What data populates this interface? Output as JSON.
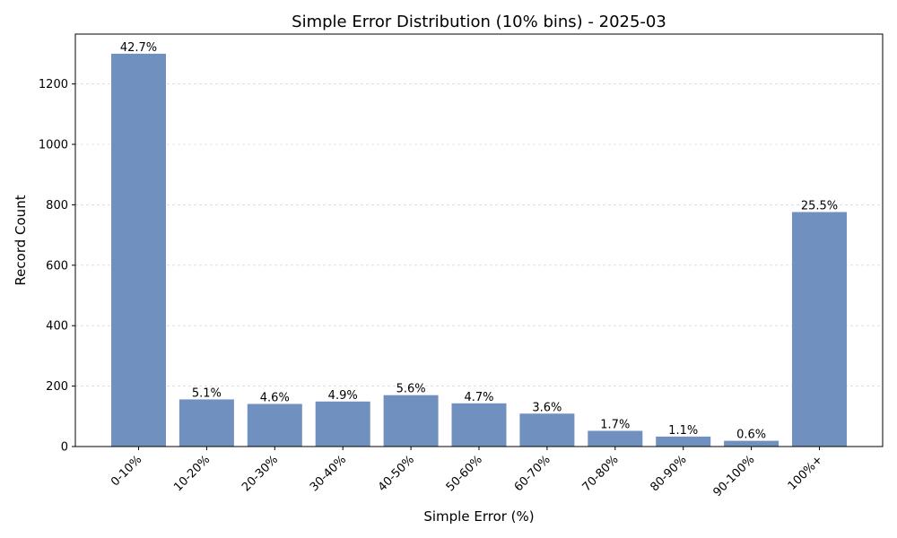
{
  "chart_data": {
    "type": "bar",
    "title": "Simple Error Distribution (10% bins) - 2025-03",
    "xlabel": "Simple Error (%)",
    "ylabel": "Record Count",
    "categories": [
      "0-10%",
      "10-20%",
      "20-30%",
      "30-40%",
      "40-50%",
      "50-60%",
      "60-70%",
      "70-80%",
      "80-90%",
      "90-100%",
      "100%+"
    ],
    "values": [
      1300,
      156,
      141,
      149,
      170,
      143,
      109,
      52,
      33,
      19,
      776
    ],
    "data_labels": [
      "42.7%",
      "5.1%",
      "4.6%",
      "4.9%",
      "5.6%",
      "4.7%",
      "3.6%",
      "1.7%",
      "1.1%",
      "0.6%",
      "25.5%"
    ],
    "yticks": [
      0,
      200,
      400,
      600,
      800,
      1000,
      1200
    ],
    "ylim": [
      0,
      1365
    ],
    "grid": "y-dashed",
    "legend": "none",
    "bar_color": "#7090c0"
  }
}
